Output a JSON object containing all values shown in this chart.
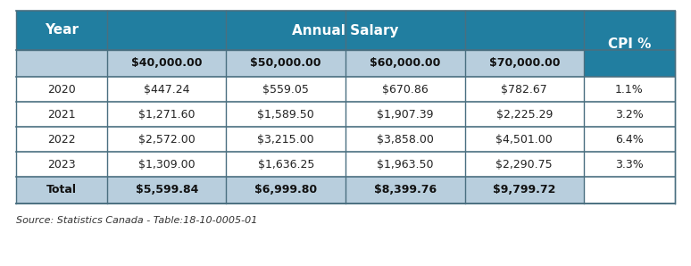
{
  "title_header1": "Year",
  "title_header2": "Annual Salary",
  "title_header3": "CPI %",
  "subheaders": [
    "$40,000.00",
    "$50,000.00",
    "$60,000.00",
    "$70,000.00"
  ],
  "years": [
    "2020",
    "2021",
    "2022",
    "2023"
  ],
  "data": [
    [
      "$447.24",
      "$559.05",
      "$670.86",
      "$782.67",
      "1.1%"
    ],
    [
      "$1,271.60",
      "$1,589.50",
      "$1,907.39",
      "$2,225.29",
      "3.2%"
    ],
    [
      "$2,572.00",
      "$3,215.00",
      "$3,858.00",
      "$4,501.00",
      "6.4%"
    ],
    [
      "$1,309.00",
      "$1,636.25",
      "$1,963.50",
      "$2,290.75",
      "3.3%"
    ]
  ],
  "totals": [
    "Total",
    "$5,599.84",
    "$6,999.80",
    "$8,399.76",
    "$9,799.72"
  ],
  "source": "Source: Statistics Canada - Table:18-10-0005-01",
  "header_bg": "#217eA0",
  "header_text": "#ffffff",
  "subheader_bg": "#b8cedd",
  "subheader_text": "#111111",
  "total_bg": "#b8cedd",
  "total_text": "#111111",
  "data_text": "#222222",
  "border_color": "#4a6f80",
  "source_color": "#333333",
  "fig_width": 7.74,
  "fig_height": 2.98,
  "dpi": 100
}
